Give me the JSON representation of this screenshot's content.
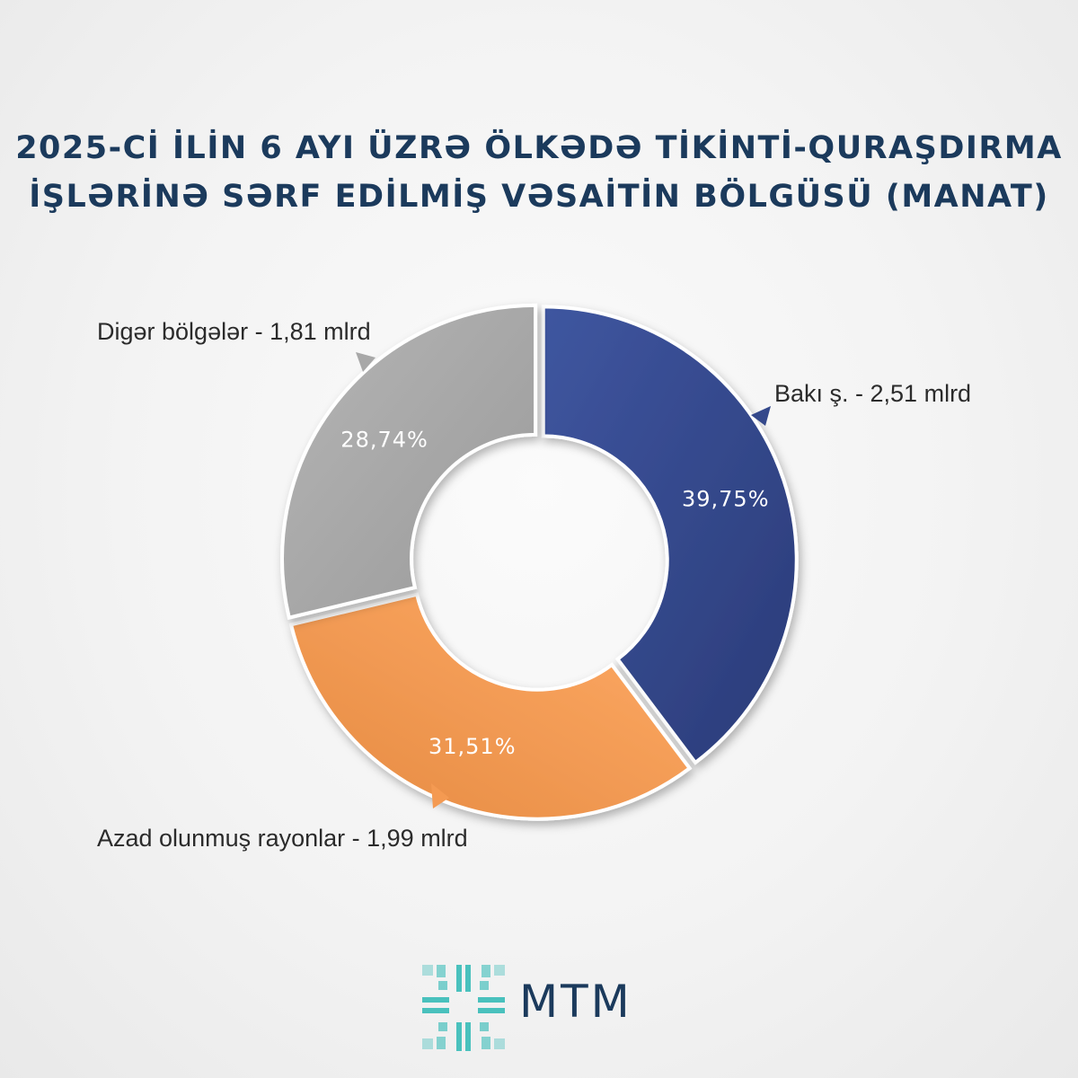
{
  "title": {
    "line1": "2025-Cİ İLİN 6 AYI ÜZRƏ ÖLKƏDƏ TİKİNTİ-QURAŞDIRMA",
    "line2": "İŞLƏRİNƏ SƏRF EDİLMİŞ VƏSAİTİN BÖLGÜSÜ (MANAT)"
  },
  "chart_data": {
    "type": "pie",
    "title": "2025-Cİ İLİN 6 AYI ÜZRƏ ÖLKƏDƏ TİKİNTİ-QURAŞDIRMA İŞLƏRİNƏ SƏRF EDİLMİŞ VƏSAİTİN BÖLGÜSÜ (MANAT)",
    "slices": [
      {
        "label": "Bakı ş. - 2,51 mlrd",
        "value": 39.75,
        "value_label": "39,75%",
        "color": "#34488b"
      },
      {
        "label": "Azad olunmuş rayonlar - 1,99 mlrd",
        "value": 31.51,
        "value_label": "31,51%",
        "color": "#f49a52"
      },
      {
        "label": "Digər bölgələr - 1,81 mlrd",
        "value": 28.74,
        "value_label": "28,74%",
        "color": "#a8a8a8"
      }
    ]
  },
  "logo": {
    "text": "MTM",
    "color": "#1b3a5c",
    "accent": "#2cb8b4"
  }
}
